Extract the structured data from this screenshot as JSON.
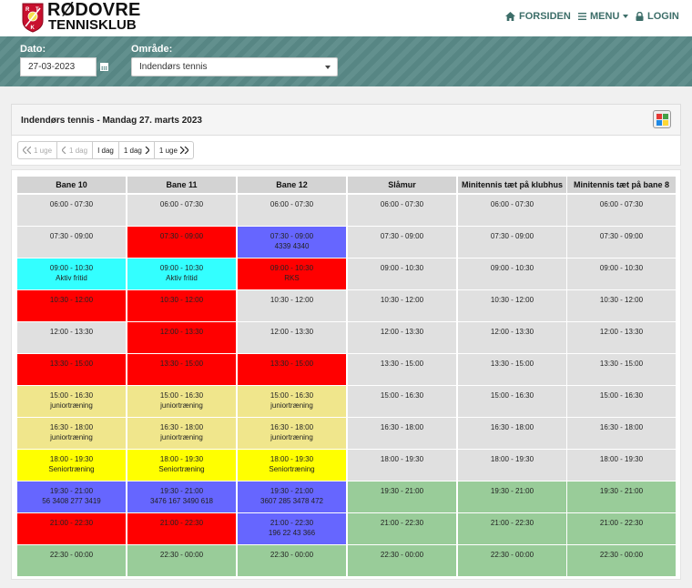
{
  "header": {
    "logo_line1": "RØDOVRE",
    "logo_line2": "TENNISKLUB",
    "logo_letters": [
      "R",
      "T",
      "K"
    ],
    "nav": [
      {
        "label": "FORSIDEN",
        "icon": "home-icon"
      },
      {
        "label": "MENU",
        "icon": "menu-icon"
      },
      {
        "label": "LOGIN",
        "icon": "lock-icon"
      }
    ]
  },
  "filters": {
    "date_label": "Dato:",
    "date_value": "27-03-2023",
    "area_label": "Område:",
    "area_value": "Indendørs tennis"
  },
  "panel": {
    "title": "Indendørs tennis  - Mandag 27. marts 2023"
  },
  "pager": [
    "1 uge",
    "1 dag",
    "I dag",
    "1 dag",
    "1 uge"
  ],
  "colors": {
    "free": "#e0e0e0",
    "booked": "#ff0000",
    "member": "#6666ff",
    "activity": "#33ffff",
    "junior": "#f0e68c",
    "senior": "#ffff00",
    "open": "#99cc99"
  },
  "columns": [
    "Bane 10",
    "Bane 11",
    "Bane 12",
    "Slåmur",
    "Minitennis tæt på klubhus",
    "Minitennis tæt på bane 8"
  ],
  "grid": [
    [
      {
        "time": "06:00 - 07:30",
        "type": "free"
      },
      {
        "time": "07:30 - 09:00",
        "type": "free"
      },
      {
        "time": "09:00 - 10:30",
        "type": "activity",
        "text": "Aktiv fritid"
      },
      {
        "time": "10:30 - 12:00",
        "type": "booked"
      },
      {
        "time": "12:00 - 13:30",
        "type": "free"
      },
      {
        "time": "13:30 - 15:00",
        "type": "booked"
      },
      {
        "time": "15:00 - 16:30",
        "type": "junior",
        "text": "juniortræning"
      },
      {
        "time": "16:30 - 18:00",
        "type": "junior",
        "text": "juniortræning"
      },
      {
        "time": "18:00 - 19:30",
        "type": "senior",
        "text": "Seniortræning"
      },
      {
        "time": "19:30 - 21:00",
        "type": "member",
        "text": "56 3408 277 3419"
      },
      {
        "time": "21:00 - 22:30",
        "type": "booked"
      },
      {
        "time": "22:30 - 00:00",
        "type": "open"
      }
    ],
    [
      {
        "time": "06:00 - 07:30",
        "type": "free"
      },
      {
        "time": "07:30 - 09:00",
        "type": "booked"
      },
      {
        "time": "09:00 - 10:30",
        "type": "activity",
        "text": "Aktiv fritid"
      },
      {
        "time": "10:30 - 12:00",
        "type": "booked"
      },
      {
        "time": "12:00 - 13:30",
        "type": "booked"
      },
      {
        "time": "13:30 - 15:00",
        "type": "booked"
      },
      {
        "time": "15:00 - 16:30",
        "type": "junior",
        "text": "juniortræning"
      },
      {
        "time": "16:30 - 18:00",
        "type": "junior",
        "text": "juniortræning"
      },
      {
        "time": "18:00 - 19:30",
        "type": "senior",
        "text": "Seniortræning"
      },
      {
        "time": "19:30 - 21:00",
        "type": "member",
        "text": "3476 167 3490 618"
      },
      {
        "time": "21:00 - 22:30",
        "type": "booked"
      },
      {
        "time": "22:30 - 00:00",
        "type": "open"
      }
    ],
    [
      {
        "time": "06:00 - 07:30",
        "type": "free"
      },
      {
        "time": "07:30 - 09:00",
        "type": "member",
        "text": "4339 4340"
      },
      {
        "time": "09:00 - 10:30",
        "type": "booked",
        "text": "RKS"
      },
      {
        "time": "10:30 - 12:00",
        "type": "free"
      },
      {
        "time": "12:00 - 13:30",
        "type": "free"
      },
      {
        "time": "13:30 - 15:00",
        "type": "booked"
      },
      {
        "time": "15:00 - 16:30",
        "type": "junior",
        "text": "juniortræning"
      },
      {
        "time": "16:30 - 18:00",
        "type": "junior",
        "text": "juniortræning"
      },
      {
        "time": "18:00 - 19:30",
        "type": "senior",
        "text": "Seniortræning"
      },
      {
        "time": "19:30 - 21:00",
        "type": "member",
        "text": "3607 285 3478 472"
      },
      {
        "time": "21:00 - 22:30",
        "type": "member",
        "text": "196 22 43 366"
      },
      {
        "time": "22:30 - 00:00",
        "type": "open"
      }
    ],
    [
      {
        "time": "06:00 - 07:30",
        "type": "free"
      },
      {
        "time": "07:30 - 09:00",
        "type": "free"
      },
      {
        "time": "09:00 - 10:30",
        "type": "free"
      },
      {
        "time": "10:30 - 12:00",
        "type": "free"
      },
      {
        "time": "12:00 - 13:30",
        "type": "free"
      },
      {
        "time": "13:30 - 15:00",
        "type": "free"
      },
      {
        "time": "15:00 - 16:30",
        "type": "free"
      },
      {
        "time": "16:30 - 18:00",
        "type": "free"
      },
      {
        "time": "18:00 - 19:30",
        "type": "free"
      },
      {
        "time": "19:30 - 21:00",
        "type": "open"
      },
      {
        "time": "21:00 - 22:30",
        "type": "open"
      },
      {
        "time": "22:30 - 00:00",
        "type": "open"
      }
    ],
    [
      {
        "time": "06:00 - 07:30",
        "type": "free"
      },
      {
        "time": "07:30 - 09:00",
        "type": "free"
      },
      {
        "time": "09:00 - 10:30",
        "type": "free"
      },
      {
        "time": "10:30 - 12:00",
        "type": "free"
      },
      {
        "time": "12:00 - 13:30",
        "type": "free"
      },
      {
        "time": "13:30 - 15:00",
        "type": "free"
      },
      {
        "time": "15:00 - 16:30",
        "type": "free"
      },
      {
        "time": "16:30 - 18:00",
        "type": "free"
      },
      {
        "time": "18:00 - 19:30",
        "type": "free"
      },
      {
        "time": "19:30 - 21:00",
        "type": "open"
      },
      {
        "time": "21:00 - 22:30",
        "type": "open"
      },
      {
        "time": "22:30 - 00:00",
        "type": "open"
      }
    ],
    [
      {
        "time": "06:00 - 07:30",
        "type": "free"
      },
      {
        "time": "07:30 - 09:00",
        "type": "free"
      },
      {
        "time": "09:00 - 10:30",
        "type": "free"
      },
      {
        "time": "10:30 - 12:00",
        "type": "free"
      },
      {
        "time": "12:00 - 13:30",
        "type": "free"
      },
      {
        "time": "13:30 - 15:00",
        "type": "free"
      },
      {
        "time": "15:00 - 16:30",
        "type": "free"
      },
      {
        "time": "16:30 - 18:00",
        "type": "free"
      },
      {
        "time": "18:00 - 19:30",
        "type": "free"
      },
      {
        "time": "19:30 - 21:00",
        "type": "open"
      },
      {
        "time": "21:00 - 22:30",
        "type": "open"
      },
      {
        "time": "22:30 - 00:00",
        "type": "open"
      }
    ]
  ]
}
